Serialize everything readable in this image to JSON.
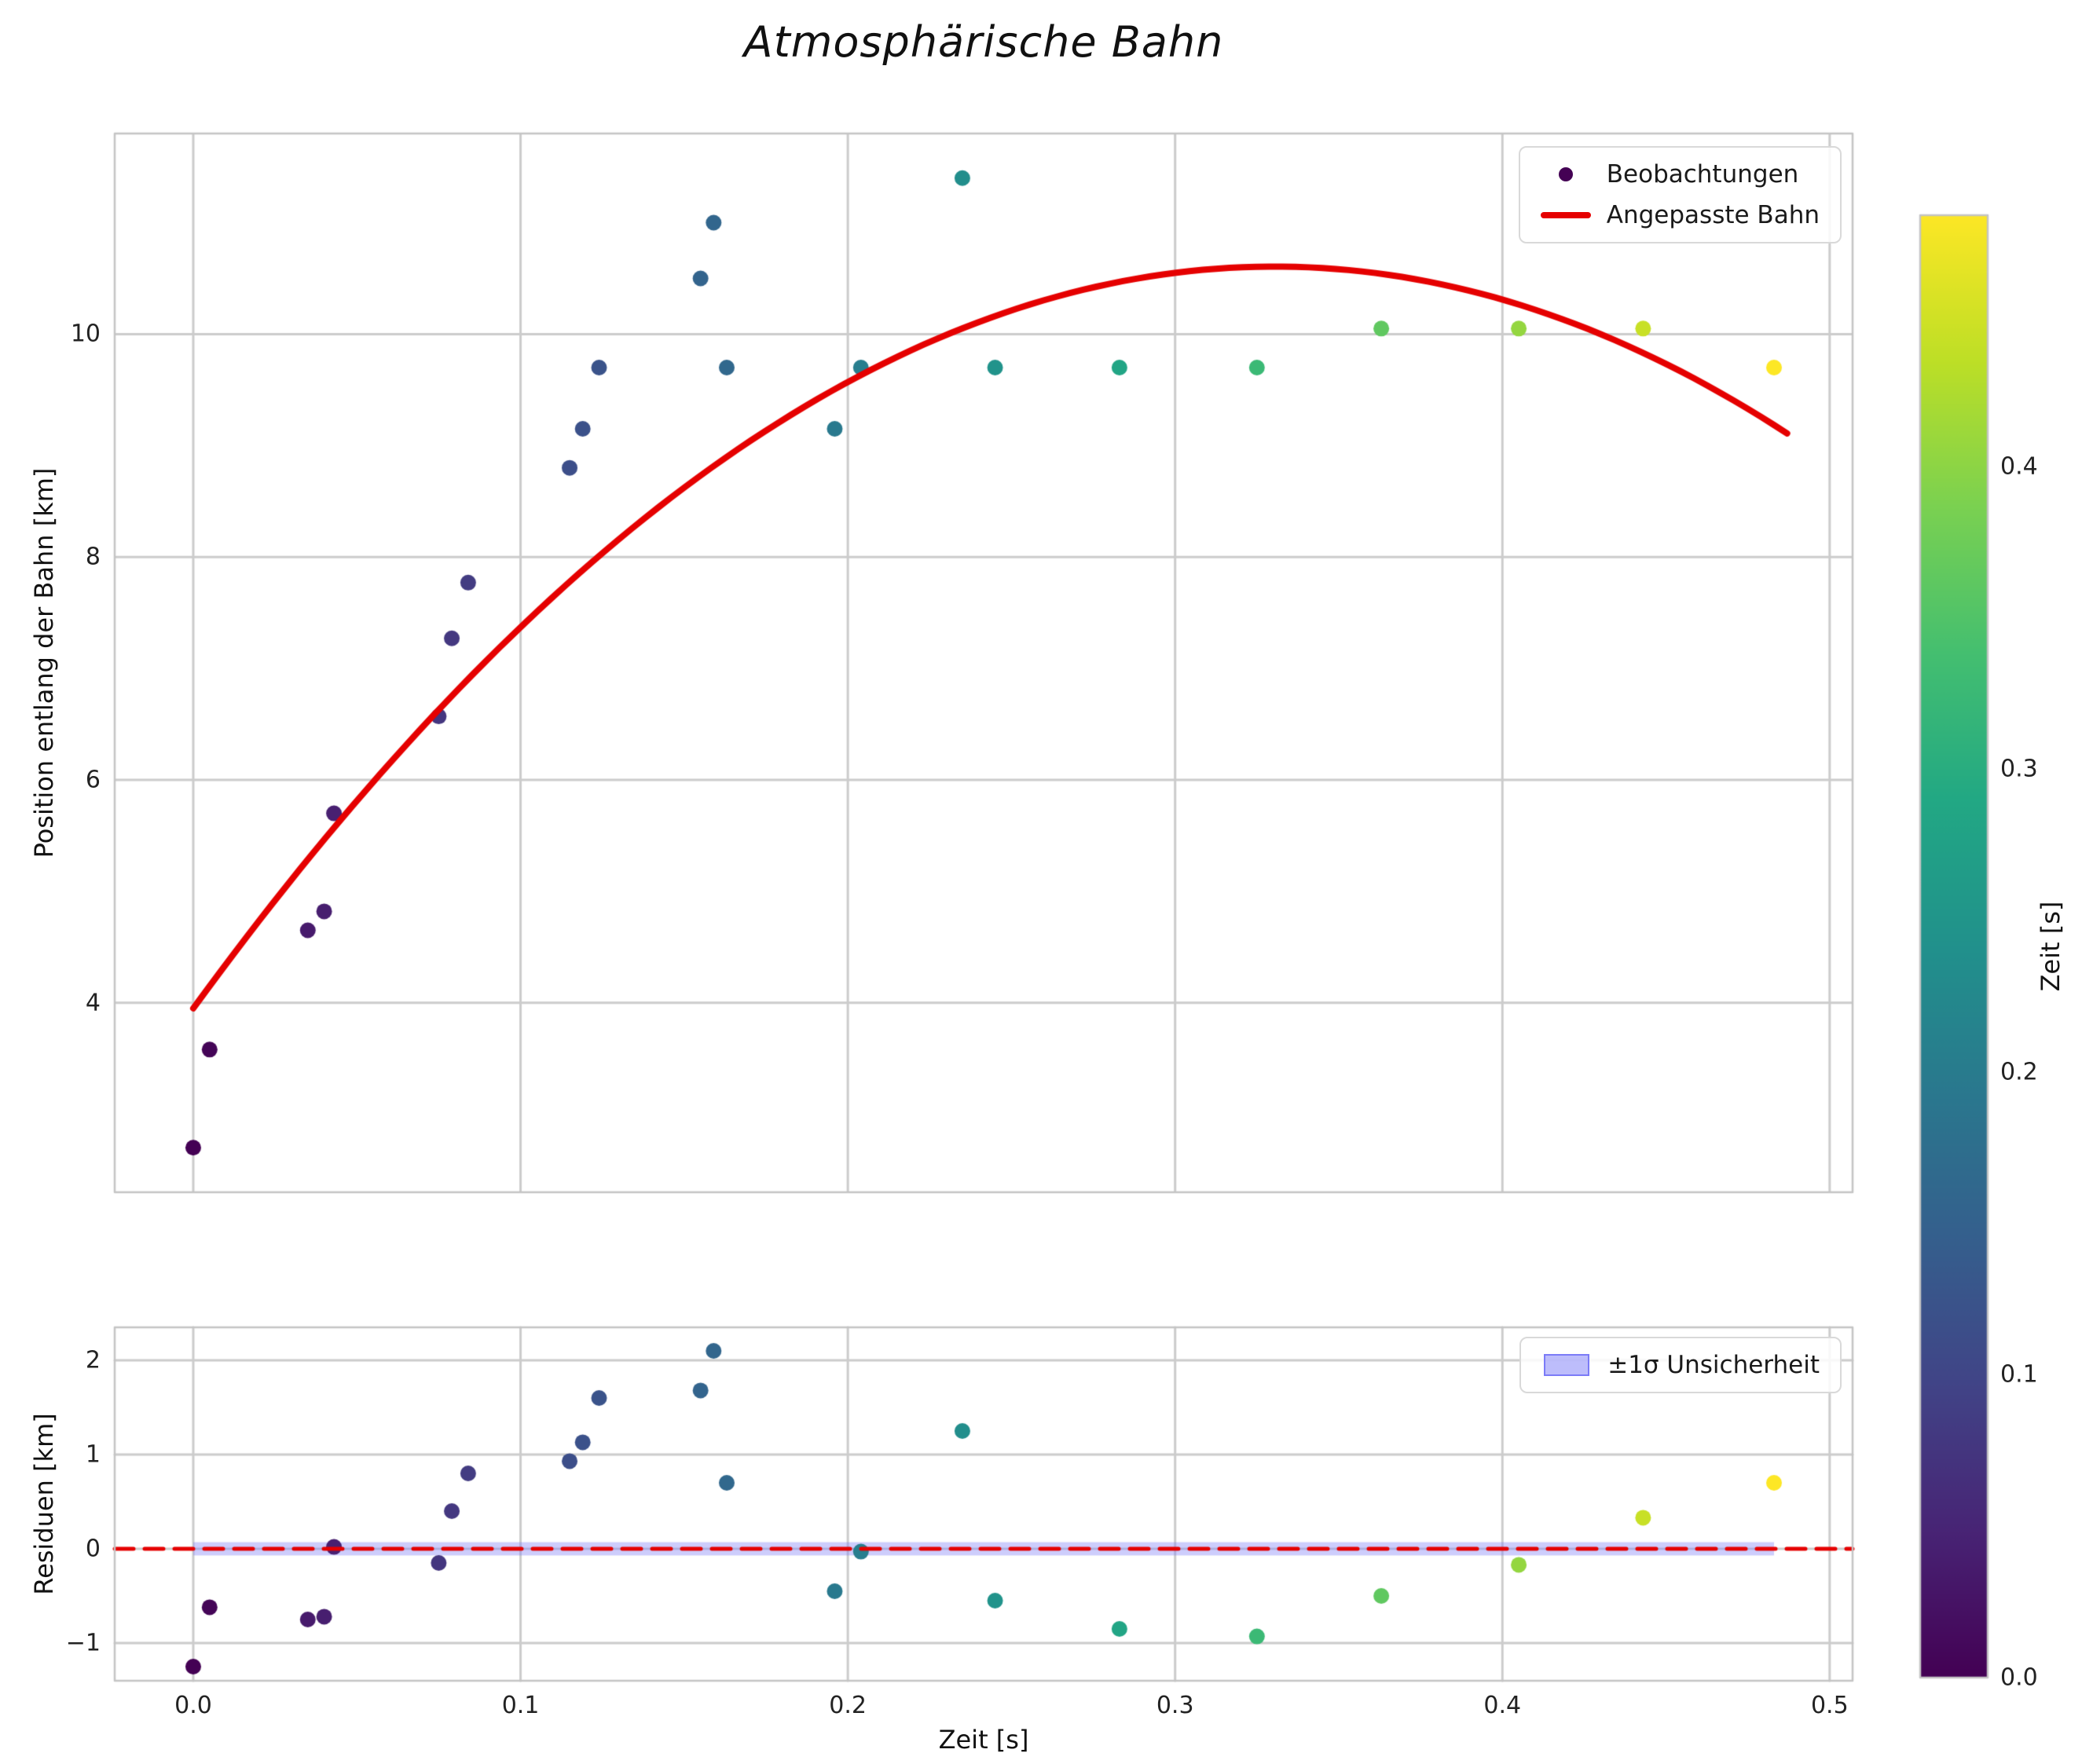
{
  "title": "Atmosphärische Bahn",
  "colorbar": {
    "label": "Zeit [s]",
    "min": 0.0,
    "max": 0.483,
    "ticks": [
      0.0,
      0.1,
      0.2,
      0.3,
      0.4
    ],
    "tick_labels": [
      "0.0",
      "0.1",
      "0.2",
      "0.3",
      "0.4"
    ],
    "colormap": "viridis",
    "stops": [
      [
        0.0,
        "#440154"
      ],
      [
        0.1,
        "#482475"
      ],
      [
        0.2,
        "#414487"
      ],
      [
        0.3,
        "#355f8d"
      ],
      [
        0.4,
        "#2a788e"
      ],
      [
        0.5,
        "#21918c"
      ],
      [
        0.6,
        "#22a884"
      ],
      [
        0.7,
        "#44bf70"
      ],
      [
        0.8,
        "#7ad151"
      ],
      [
        0.9,
        "#bddf26"
      ],
      [
        1.0,
        "#fde725"
      ]
    ]
  },
  "chart_data": [
    {
      "id": "trajectory",
      "type": "scatter",
      "title": "Atmosphärische Bahn",
      "ylabel": "Position entlang der Bahn [km]",
      "xlim": [
        -0.024,
        0.507
      ],
      "ylim": [
        2.3,
        11.8
      ],
      "grid": true,
      "xticks": [
        0.0,
        0.1,
        0.2,
        0.3,
        0.4,
        0.5
      ],
      "yticks": [
        4,
        6,
        8,
        10
      ],
      "ytick_labels": [
        "4",
        "6",
        "8",
        "10"
      ],
      "points": {
        "color_by": "t",
        "t": [
          0.0,
          0.005,
          0.035,
          0.04,
          0.043,
          0.075,
          0.079,
          0.084,
          0.115,
          0.119,
          0.124,
          0.155,
          0.159,
          0.163,
          0.196,
          0.204,
          0.235,
          0.245,
          0.283,
          0.325,
          0.363,
          0.405,
          0.443,
          0.483
        ],
        "y": [
          2.7,
          3.58,
          4.65,
          4.82,
          5.7,
          6.57,
          7.27,
          7.77,
          8.8,
          9.15,
          9.7,
          10.5,
          11.0,
          9.7,
          9.15,
          9.7,
          11.4,
          9.7,
          9.7,
          9.7,
          10.05,
          10.05,
          10.05,
          9.7
        ]
      },
      "fit": {
        "model": "quadratic",
        "coeffs": [
          3.95,
          40.3,
          -61.0
        ],
        "t_range": [
          0.0,
          0.487
        ],
        "color": "#e50000"
      },
      "legend": [
        {
          "label": "Beobachtungen",
          "marker": "dot",
          "color": "#440154"
        },
        {
          "label": "Angepasste Bahn",
          "marker": "line",
          "color": "#e50000"
        }
      ]
    },
    {
      "id": "residuals",
      "type": "scatter",
      "ylabel": "Residuen [km]",
      "xlabel": "Zeit [s]",
      "xlim": [
        -0.024,
        0.507
      ],
      "ylim": [
        -1.4,
        2.35
      ],
      "grid": true,
      "xticks": [
        0.0,
        0.1,
        0.2,
        0.3,
        0.4,
        0.5
      ],
      "xtick_labels": [
        "0.0",
        "0.1",
        "0.2",
        "0.3",
        "0.4",
        "0.5"
      ],
      "yticks": [
        -1,
        0,
        1,
        2
      ],
      "ytick_labels": [
        "−1",
        "0",
        "1",
        "2"
      ],
      "points": {
        "color_by": "t",
        "t": [
          0.0,
          0.005,
          0.035,
          0.04,
          0.043,
          0.075,
          0.079,
          0.084,
          0.115,
          0.119,
          0.124,
          0.155,
          0.159,
          0.163,
          0.196,
          0.204,
          0.235,
          0.245,
          0.283,
          0.325,
          0.363,
          0.405,
          0.443,
          0.483
        ],
        "residual": [
          -1.25,
          -0.62,
          -0.75,
          -0.72,
          0.02,
          -0.15,
          0.4,
          0.8,
          0.93,
          1.13,
          1.6,
          1.68,
          2.1,
          0.7,
          -0.45,
          -0.03,
          1.25,
          -0.55,
          -0.85,
          -0.93,
          -0.5,
          -0.17,
          0.33,
          0.7
        ]
      },
      "zero_line": {
        "color": "#e50000",
        "dashed": true
      },
      "band": {
        "label": "±1σ Unsicherheit",
        "sigma": 0.07,
        "fill": "#7b7bf7",
        "alpha": 0.38
      }
    }
  ]
}
